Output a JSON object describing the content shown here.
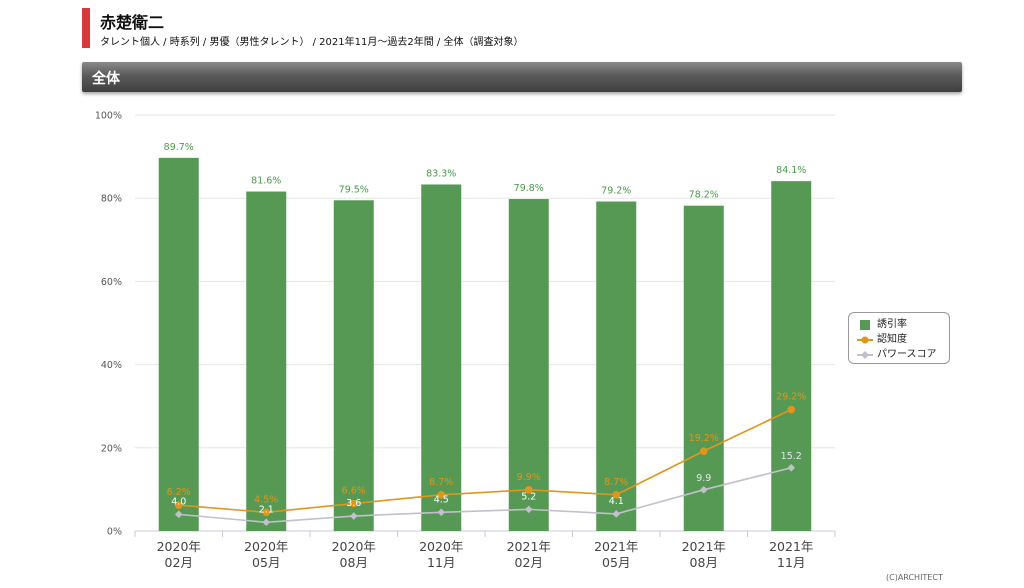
{
  "header": {
    "title": "赤楚衛二",
    "subtitle": "タレント個人 / 時系列 / 男優（男性タレント） / 2021年11月〜過去2年間 / 全体（調査対象）"
  },
  "section": {
    "label": "全体"
  },
  "chart_data": {
    "type": "bar",
    "categories": [
      [
        "2020年",
        "02月"
      ],
      [
        "2020年",
        "05月"
      ],
      [
        "2020年",
        "08月"
      ],
      [
        "2020年",
        "11月"
      ],
      [
        "2021年",
        "02月"
      ],
      [
        "2021年",
        "05月"
      ],
      [
        "2021年",
        "08月"
      ],
      [
        "2021年",
        "11月"
      ]
    ],
    "ylim": [
      0,
      100
    ],
    "y_ticks": [
      "0%",
      "20%",
      "40%",
      "60%",
      "80%",
      "100%"
    ],
    "series": [
      {
        "name": "誘引率",
        "kind": "bar",
        "color": "#559955",
        "label_color": "#4a9a4a",
        "values": [
          89.7,
          81.6,
          79.5,
          83.3,
          79.8,
          79.2,
          78.2,
          84.1
        ],
        "labels": [
          "89.7%",
          "81.6%",
          "79.5%",
          "83.3%",
          "79.8%",
          "79.2%",
          "78.2%",
          "84.1%"
        ]
      },
      {
        "name": "認知度",
        "kind": "line",
        "color": "#e0961c",
        "label_color": "#e0961c",
        "values": [
          6.2,
          4.5,
          6.6,
          8.7,
          9.9,
          8.7,
          19.2,
          29.2
        ],
        "labels": [
          "6.2%",
          "4.5%",
          "6.6%",
          "8.7%",
          "9.9%",
          "8.7%",
          "19.2%",
          "29.2%"
        ]
      },
      {
        "name": "パワースコア",
        "kind": "line",
        "color": "#c4bfcc",
        "label_color": "#ffffff",
        "values": [
          4.0,
          2.1,
          3.6,
          4.5,
          5.2,
          4.1,
          9.9,
          15.2
        ],
        "labels": [
          "4.0",
          "2.1",
          "3.6",
          "4.5",
          "5.2",
          "4.1",
          "9.9",
          "15.2"
        ]
      }
    ],
    "legend_position": "right",
    "grid": true
  },
  "footer": {
    "copyright": "(C)ARCHITECT"
  }
}
